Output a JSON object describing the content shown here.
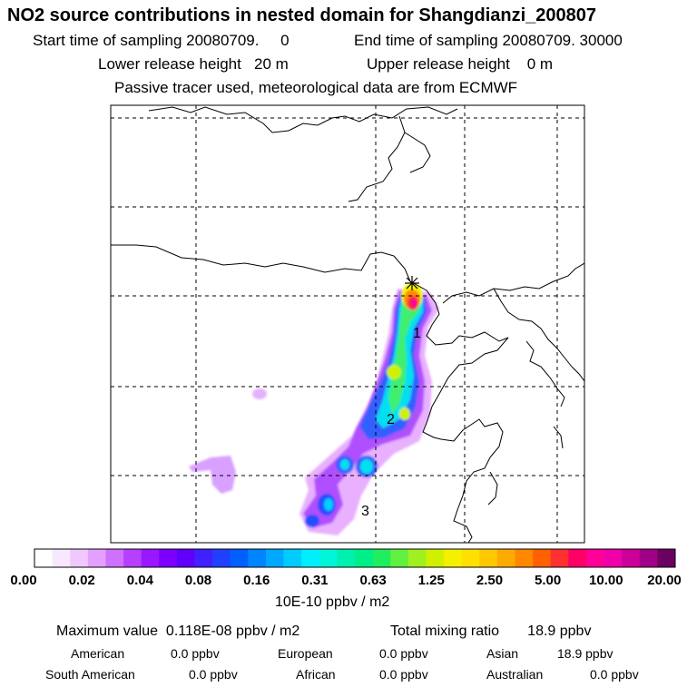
{
  "header": {
    "title": "NO2 source contributions in nested domain for Shangdianzi_200807",
    "start_time": "Start time of sampling 20080709.     0",
    "end_time": "End time of sampling 20080709. 30000",
    "lower_release": "Lower release height   20 m",
    "upper_release": "Upper release height    0 m",
    "tracer_note": "Passive tracer used, meteorological data are from ECMWF"
  },
  "map": {
    "markers": [
      "1",
      "2",
      "3"
    ]
  },
  "legend": {
    "ticks": [
      "0.00",
      "0.02",
      "0.04",
      "0.08",
      "0.16",
      "0.31",
      "0.63",
      "1.25",
      "2.50",
      "5.00",
      "10.00",
      "20.00"
    ],
    "unit": "10E-10 ppbv / m2"
  },
  "summary": {
    "max_label": "Maximum value  0.118E-08 ppbv / m2",
    "total_label": "Total mixing ratio       18.9 ppbv",
    "regions": [
      {
        "name": "American",
        "value": "0.0 ppbv"
      },
      {
        "name": "European",
        "value": "0.0 ppbv"
      },
      {
        "name": "Asian",
        "value": "18.9 ppbv"
      },
      {
        "name": "South American",
        "value": "0.0 ppbv"
      },
      {
        "name": "African",
        "value": "0.0 ppbv"
      },
      {
        "name": "Australian",
        "value": "0.0 ppbv"
      }
    ]
  },
  "colors": {
    "scale": [
      "#ffffff",
      "#f8e8ff",
      "#f0c8ff",
      "#e4a0ff",
      "#d070ff",
      "#b640ff",
      "#9a18ff",
      "#7c00ff",
      "#5f00ff",
      "#4020ff",
      "#2040ff",
      "#0060ff",
      "#0084ff",
      "#00a8ff",
      "#00ccff",
      "#00eeff",
      "#00f4d8",
      "#00f0b0",
      "#00ee88",
      "#20ee60",
      "#60f040",
      "#a0f020",
      "#d0f000",
      "#f4f000",
      "#ffe000",
      "#ffc800",
      "#ffaa00",
      "#ff8800",
      "#ff6000",
      "#ff3030",
      "#ff0066",
      "#ff0099",
      "#ee00aa",
      "#cc0099",
      "#a00088",
      "#6a0060"
    ]
  }
}
